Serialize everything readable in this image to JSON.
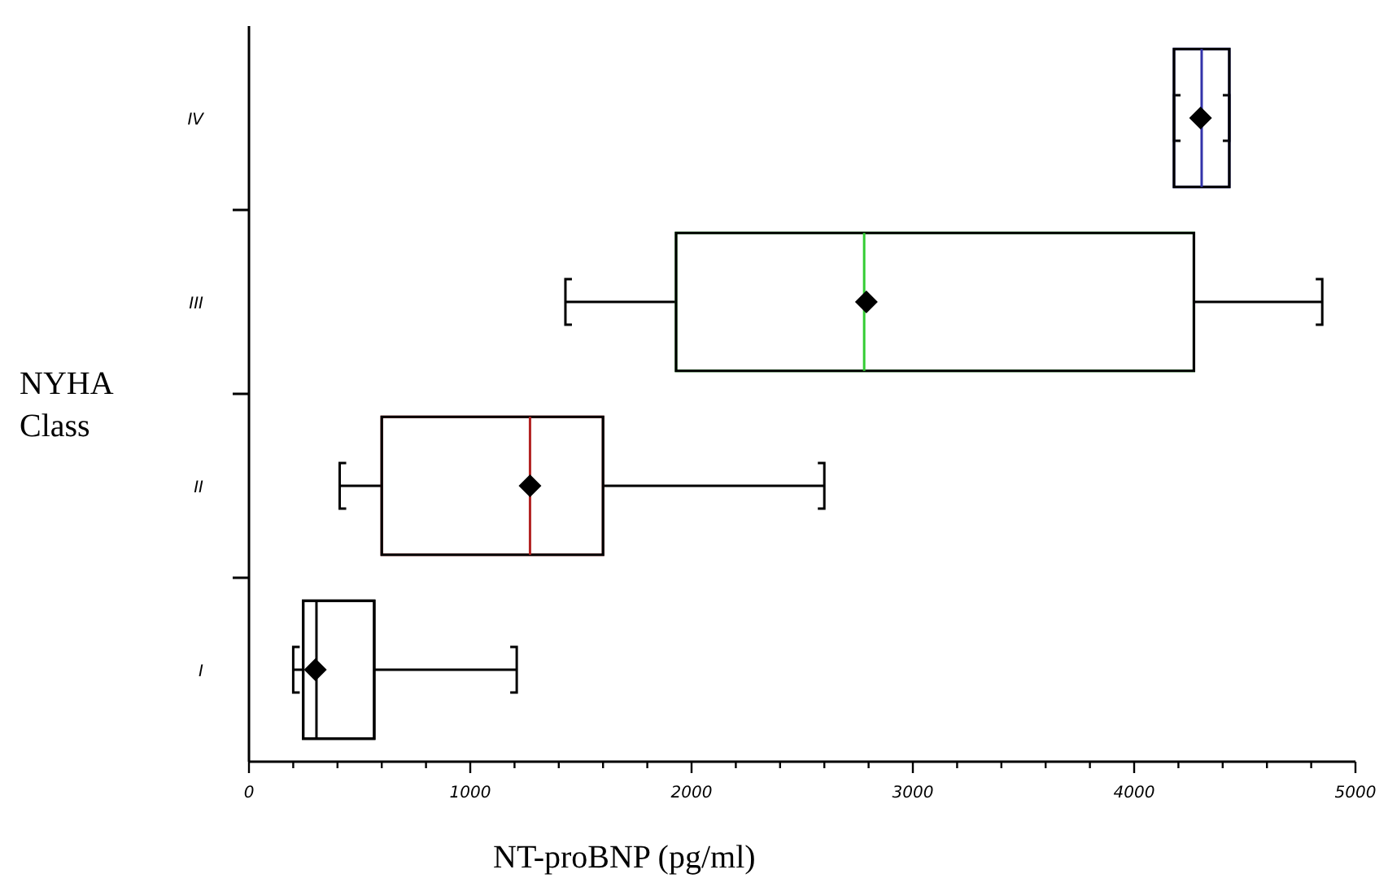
{
  "chart_data": {
    "type": "box",
    "orientation": "horizontal",
    "xlabel": "NT-proBNP (pg/ml)",
    "ylabel": "NYHA Class",
    "categories": [
      "IV",
      "III",
      "II",
      "I"
    ],
    "colors": [
      "#3333aa",
      "#33cc33",
      "#b22222",
      "#000000"
    ],
    "boxes": [
      {
        "low": 4180,
        "q1": 4180,
        "median": 4305,
        "q3": 4430,
        "high": 4430,
        "mean": 4300
      },
      {
        "low": 1430,
        "q1": 1930,
        "median": 2780,
        "q3": 4270,
        "high": 4850,
        "mean": 2790
      },
      {
        "low": 410,
        "q1": 600,
        "median": 1270,
        "q3": 1600,
        "high": 2600,
        "mean": 1270
      },
      {
        "low": 200,
        "q1": 245,
        "median": 305,
        "q3": 566,
        "high": 1210,
        "mean": 300
      }
    ],
    "xlim": [
      0,
      5000
    ],
    "xticks": [
      0,
      {
        "value": 200,
        "label": null
      },
      {
        "value": 400,
        "label": null
      },
      {
        "value": 600,
        "label": null
      },
      {
        "value": 800,
        "label": null
      },
      1000,
      {
        "value": 1200,
        "label": null
      },
      {
        "value": 1400,
        "label": null
      },
      {
        "value": 1600,
        "label": null
      },
      {
        "value": 1800,
        "label": null
      },
      2000,
      {
        "value": 2200,
        "label": null
      },
      {
        "value": 2400,
        "label": null
      },
      {
        "value": 2600,
        "label": null
      },
      {
        "value": 2800,
        "label": null
      },
      3000,
      {
        "value": 3200,
        "label": null
      },
      {
        "value": 3400,
        "label": null
      },
      {
        "value": 3600,
        "label": null
      },
      {
        "value": 3800,
        "label": null
      },
      4000,
      {
        "value": 4200,
        "label": null
      },
      {
        "value": 4400,
        "label": null
      },
      {
        "value": 4600,
        "label": null
      },
      {
        "value": 4800,
        "label": null
      },
      5000
    ],
    "marker": "diamond",
    "grid": false
  }
}
